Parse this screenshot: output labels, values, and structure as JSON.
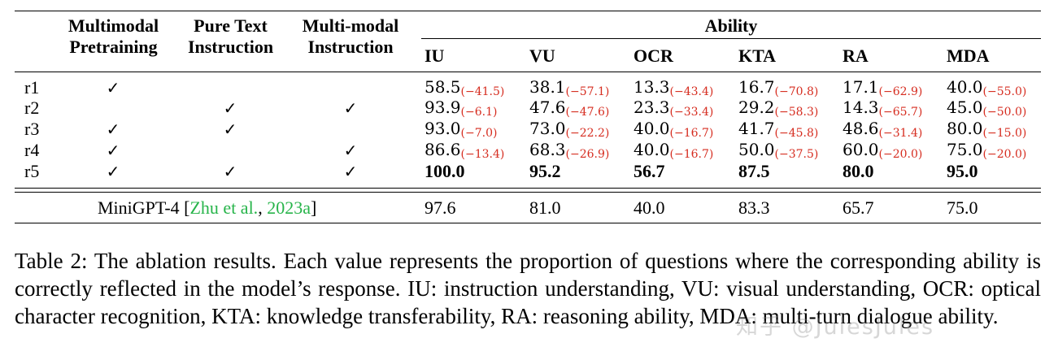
{
  "table": {
    "headers": {
      "multimodal_pretraining": [
        "Multimodal",
        "Pretraining"
      ],
      "pure_text_instruction": [
        "Pure Text",
        "Instruction"
      ],
      "multimodal_instruction": [
        "Multi-modal",
        "Instruction"
      ],
      "ability": "Ability",
      "abilities": [
        "IU",
        "VU",
        "OCR",
        "KTA",
        "RA",
        "MDA"
      ]
    },
    "rows": [
      {
        "label": "r1",
        "checks": [
          "✓",
          "",
          ""
        ],
        "values": [
          [
            "58.5",
            "(−41.5)"
          ],
          [
            "38.1",
            "(−57.1)"
          ],
          [
            "13.3",
            "(−43.4)"
          ],
          [
            "16.7",
            "(−70.8)"
          ],
          [
            "17.1",
            "(−62.9)"
          ],
          [
            "40.0",
            "(−55.0)"
          ]
        ]
      },
      {
        "label": "r2",
        "checks": [
          "",
          "✓",
          "✓"
        ],
        "values": [
          [
            "93.9",
            "(−6.1)"
          ],
          [
            "47.6",
            "(−47.6)"
          ],
          [
            "23.3",
            "(−33.4)"
          ],
          [
            "29.2",
            "(−58.3)"
          ],
          [
            "14.3",
            "(−65.7)"
          ],
          [
            "45.0",
            "(−50.0)"
          ]
        ]
      },
      {
        "label": "r3",
        "checks": [
          "✓",
          "✓",
          ""
        ],
        "values": [
          [
            "93.0",
            "(−7.0)"
          ],
          [
            "73.0",
            "(−22.2)"
          ],
          [
            "40.0",
            "(−16.7)"
          ],
          [
            "41.7",
            "(−45.8)"
          ],
          [
            "48.6",
            "(−31.4)"
          ],
          [
            "80.0",
            "(−15.0)"
          ]
        ]
      },
      {
        "label": "r4",
        "checks": [
          "✓",
          "",
          "✓"
        ],
        "values": [
          [
            "86.6",
            "(−13.4)"
          ],
          [
            "68.3",
            "(−26.9)"
          ],
          [
            "40.0",
            "(−16.7)"
          ],
          [
            "50.0",
            "(−37.5)"
          ],
          [
            "60.0",
            "(−20.0)"
          ],
          [
            "75.0",
            "(−20.0)"
          ]
        ]
      },
      {
        "label": "r5",
        "checks": [
          "✓",
          "✓",
          "✓"
        ],
        "bold_values": [
          "100.0",
          "95.2",
          "56.7",
          "87.5",
          "80.0",
          "95.0"
        ]
      }
    ],
    "baseline": {
      "model": "MiniGPT-4 [",
      "cite_author": "Zhu et al.",
      "cite_sep": ", ",
      "cite_year": "2023a",
      "cite_close": "]",
      "values": [
        "97.6",
        "81.0",
        "40.0",
        "83.3",
        "65.7",
        "75.0"
      ]
    }
  },
  "caption": "Table 2: The ablation results. Each value represents the proportion of questions where the corresponding ability is correctly reflected in the model’s response. IU: instruction understanding, VU: visual understanding, OCR: optical character recognition, KTA: knowledge transferability, RA: reasoning ability, MDA: multi-turn dialogue ability.",
  "watermark": "知乎 @JulesJules"
}
